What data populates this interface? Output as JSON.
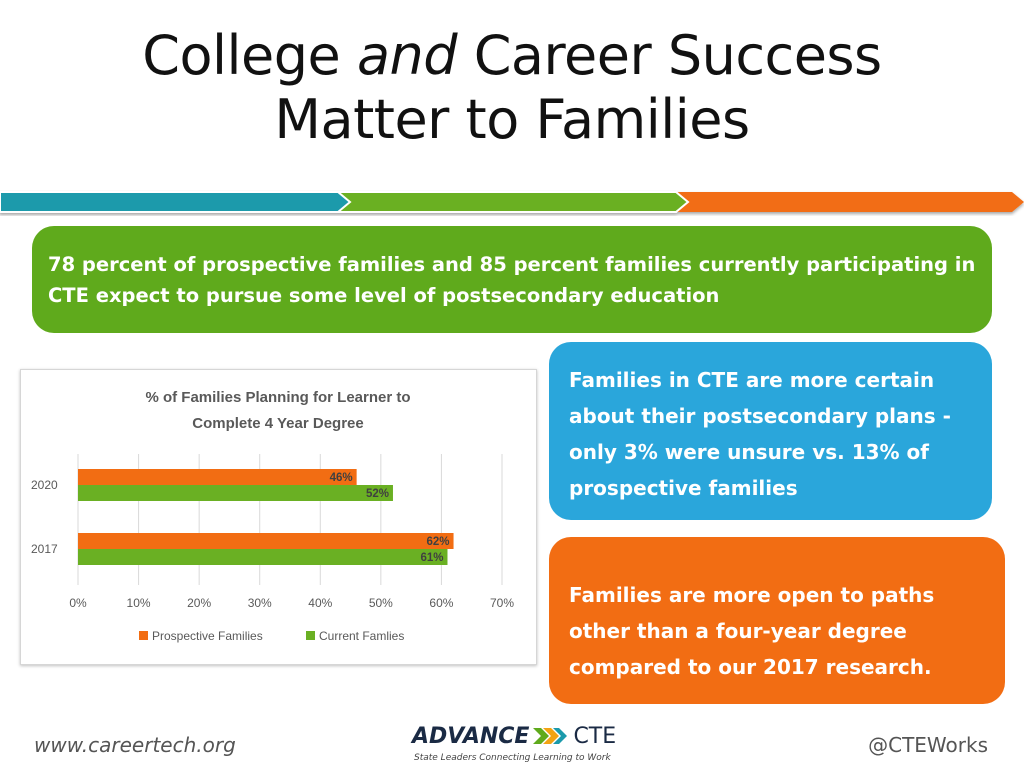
{
  "slide": {
    "title_part1": "College ",
    "title_emphasis": "and",
    "title_part2": " Career Success",
    "title_line2": "Matter to Families"
  },
  "colors": {
    "teal": "#1b9aab",
    "green": "#5faa1c",
    "orange": "#f26d13",
    "blue": "#2aa6db"
  },
  "callouts": {
    "green_text": "78 percent of prospective families and 85 percent families currently participating in CTE expect to pursue some level of postsecondary education",
    "blue_text": "Families in CTE are more certain about their postsecondary plans - only 3% were unsure vs. 13% of prospective families",
    "orange_text": "Families are more open to paths other than a four-year degree  compared to our 2017 research."
  },
  "chart_data": {
    "type": "bar",
    "orientation": "horizontal",
    "title": "% of Families Planning for Learner  to Complete 4 Year Degree",
    "title_lines": [
      "% of Families Planning for Learner  to",
      "Complete 4 Year Degree"
    ],
    "categories": [
      "2020",
      "2017"
    ],
    "series": [
      {
        "name": "Prospective Families",
        "color": "#f26d13",
        "values": [
          46,
          62
        ],
        "labels": [
          "46%",
          "62%"
        ]
      },
      {
        "name": "Current Famlies",
        "color": "#6ab023",
        "values": [
          52,
          61
        ],
        "labels": [
          "52%",
          "61%"
        ]
      }
    ],
    "xlim": [
      0,
      70
    ],
    "x_ticks": [
      "0%",
      "10%",
      "20%",
      "30%",
      "40%",
      "50%",
      "60%",
      "70%"
    ],
    "grid": true,
    "legend": "bottom"
  },
  "footer": {
    "website": "www.careertech.org",
    "handle": "@CTEWorks",
    "logo_word1": "ADVANCE",
    "logo_word2": "CTE",
    "tagline": "State Leaders Connecting Learning to Work"
  }
}
